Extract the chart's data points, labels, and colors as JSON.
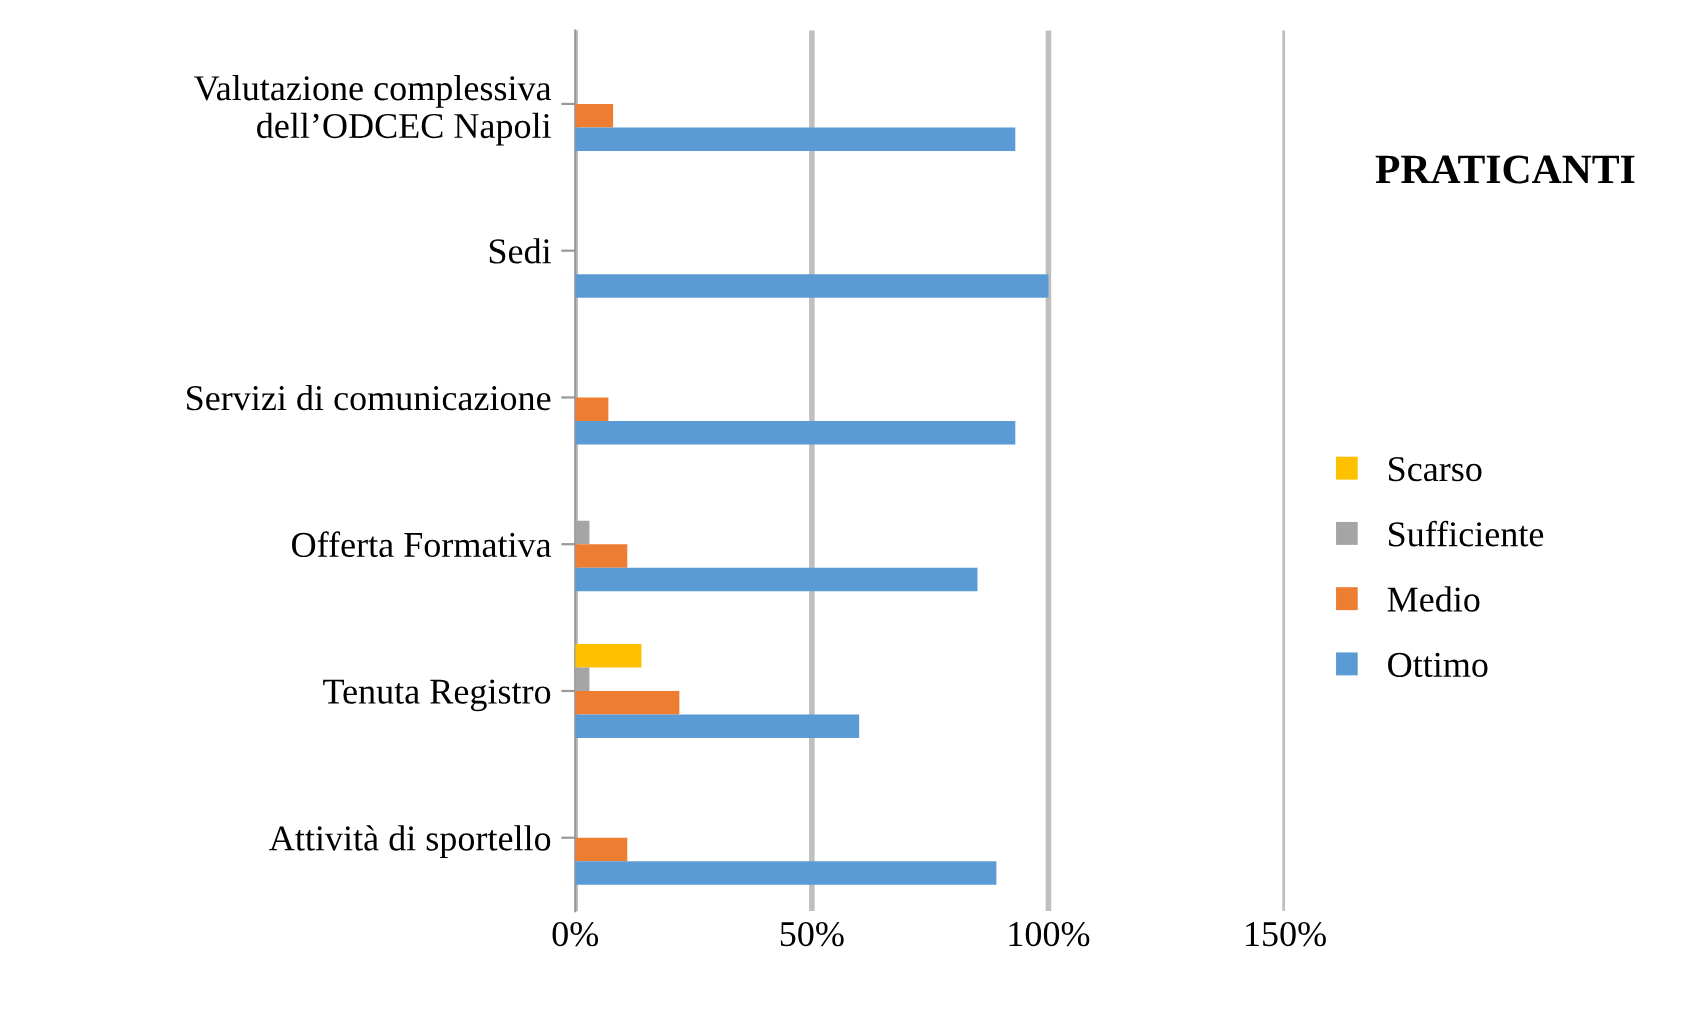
{
  "chart_data": {
    "type": "bar",
    "orientation": "horizontal",
    "title": "PRATICANTI",
    "categories": [
      "Valutazione complessiva\ndell’ODCEC Napoli",
      "Sedi",
      "Servizi di comunicazione",
      "Offerta Formativa",
      "Tenuta Registro",
      "Attività di sportello"
    ],
    "series": [
      {
        "name": "Scarso",
        "color": "#ffc000",
        "values": [
          0,
          0,
          0,
          0,
          14,
          0
        ]
      },
      {
        "name": "Sufficiente",
        "color": "#a5a5a5",
        "values": [
          0,
          0,
          0,
          3,
          3,
          0
        ]
      },
      {
        "name": "Medio",
        "color": "#ed7d31",
        "values": [
          8,
          0,
          7,
          11,
          22,
          11
        ]
      },
      {
        "name": "Ottimo",
        "color": "#5b9bd5",
        "values": [
          93,
          100,
          93,
          85,
          60,
          89
        ]
      }
    ],
    "xlim": [
      0,
      150
    ],
    "xticks": [
      {
        "value": 0,
        "label": "0%"
      },
      {
        "value": 50,
        "label": "50%"
      },
      {
        "value": 100,
        "label": "100%"
      },
      {
        "value": 150,
        "label": "150%"
      }
    ],
    "grid": "x",
    "legend": "right"
  }
}
